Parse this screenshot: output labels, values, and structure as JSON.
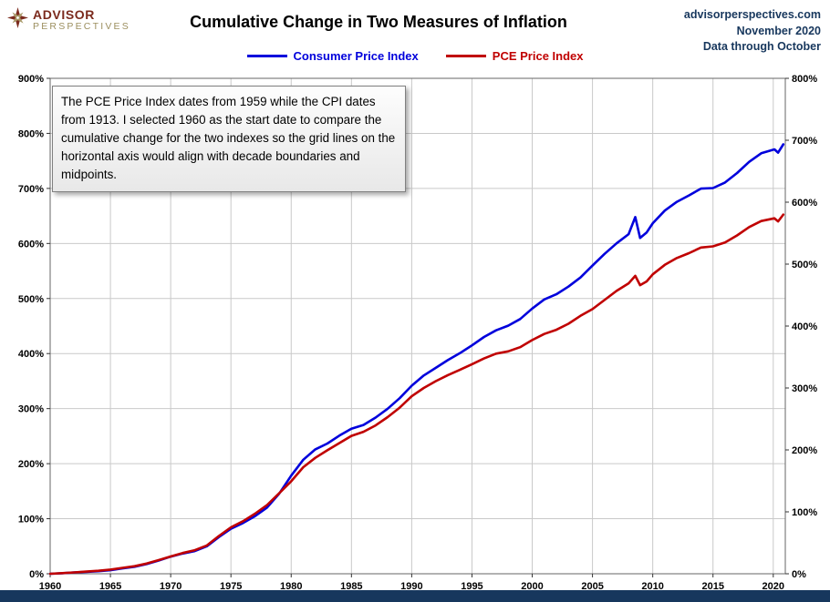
{
  "header": {
    "logo": {
      "line1": "ADVISOR",
      "line2": "PERSPECTIVES"
    },
    "title": "Cumulative Change in Two Measures of Inflation",
    "meta": [
      "advisorperspectives.com",
      "November 2020",
      "Data through October"
    ]
  },
  "legend": [
    {
      "label": "Consumer Price Index",
      "color": "#0000DC"
    },
    {
      "label": "PCE Price Index",
      "color": "#C00000"
    }
  ],
  "annotation": {
    "text": "The PCE Price Index dates from 1959 while the CPI dates from 1913. I selected 1960 as the start date to compare the cumulative change for the two indexes so the grid lines on the horizontal axis would align with decade boundaries and midpoints."
  },
  "colors": {
    "cpi_line": "#0000DC",
    "pce_line": "#C00000",
    "grid": "#C9C9C9",
    "plot_border": "#666666",
    "axis_text": "#000000",
    "navy_accent": "#17375D",
    "footer": "#17375D"
  },
  "chart_data": {
    "type": "line",
    "title": "Cumulative Change in Two Measures of Inflation",
    "xlabel": "",
    "ylabel": "",
    "grid": true,
    "legend_position": "top",
    "x_range": [
      1960,
      2021
    ],
    "x_ticks": [
      1960,
      1965,
      1970,
      1975,
      1980,
      1985,
      1990,
      1995,
      2000,
      2005,
      2010,
      2015,
      2020
    ],
    "x_tick_labels": [
      "1960",
      "1965",
      "1970",
      "1975",
      "1980",
      "1985",
      "1990",
      "1995",
      "2000",
      "2005",
      "2010",
      "2015",
      "2020"
    ],
    "left_axis": {
      "range": [
        0,
        900
      ],
      "ticks": [
        0,
        100,
        200,
        300,
        400,
        500,
        600,
        700,
        800,
        900
      ],
      "tick_labels": [
        "0%",
        "100%",
        "200%",
        "300%",
        "400%",
        "500%",
        "600%",
        "700%",
        "800%",
        "900%"
      ]
    },
    "right_axis": {
      "range": [
        0,
        800
      ],
      "ticks": [
        0,
        100,
        200,
        300,
        400,
        500,
        600,
        700,
        800
      ],
      "tick_labels": [
        "0%",
        "100%",
        "200%",
        "300%",
        "400%",
        "500%",
        "600%",
        "700%",
        "800%"
      ]
    },
    "series": [
      {
        "name": "Consumer Price Index",
        "color": "#0000DC",
        "axis": "left",
        "points": [
          [
            1960,
            0
          ],
          [
            1961,
            1
          ],
          [
            1962,
            2.4
          ],
          [
            1963,
            3.4
          ],
          [
            1964,
            4.7
          ],
          [
            1965,
            6.4
          ],
          [
            1966,
            9.8
          ],
          [
            1967,
            12.8
          ],
          [
            1968,
            17.6
          ],
          [
            1969,
            24
          ],
          [
            1970,
            31.1
          ],
          [
            1971,
            36.8
          ],
          [
            1972,
            41.2
          ],
          [
            1973,
            50
          ],
          [
            1974,
            66.6
          ],
          [
            1975,
            81.8
          ],
          [
            1976,
            92.2
          ],
          [
            1977,
            104.7
          ],
          [
            1978,
            120.3
          ],
          [
            1979,
            145.3
          ],
          [
            1980,
            178.4
          ],
          [
            1981,
            207.1
          ],
          [
            1982,
            226
          ],
          [
            1983,
            236.5
          ],
          [
            1984,
            251
          ],
          [
            1985,
            263.5
          ],
          [
            1986,
            270.3
          ],
          [
            1987,
            283.8
          ],
          [
            1988,
            299.7
          ],
          [
            1989,
            318.9
          ],
          [
            1990,
            341.6
          ],
          [
            1991,
            360.1
          ],
          [
            1992,
            374
          ],
          [
            1993,
            388.2
          ],
          [
            1994,
            400.7
          ],
          [
            1995,
            414.9
          ],
          [
            1996,
            430.1
          ],
          [
            1997,
            442.2
          ],
          [
            1998,
            450.7
          ],
          [
            1999,
            462.8
          ],
          [
            2000,
            481.8
          ],
          [
            2001,
            498.3
          ],
          [
            2002,
            507.8
          ],
          [
            2003,
            521.6
          ],
          [
            2004,
            538.2
          ],
          [
            2005,
            559.8
          ],
          [
            2006,
            581.1
          ],
          [
            2007,
            600.3
          ],
          [
            2008,
            617
          ],
          [
            2008.55,
            648
          ],
          [
            2008.95,
            610
          ],
          [
            2009.5,
            620
          ],
          [
            2010,
            636.8
          ],
          [
            2011,
            659.8
          ],
          [
            2012,
            675.7
          ],
          [
            2013,
            687.2
          ],
          [
            2014,
            699.7
          ],
          [
            2015,
            700.7
          ],
          [
            2016,
            710.8
          ],
          [
            2017,
            728
          ],
          [
            2018,
            748.3
          ],
          [
            2019,
            763.9
          ],
          [
            2020.1,
            771
          ],
          [
            2020.4,
            765
          ],
          [
            2020.83,
            780
          ]
        ]
      },
      {
        "name": "PCE Price Index",
        "color": "#C00000",
        "axis": "right",
        "points": [
          [
            1960,
            0
          ],
          [
            1961,
            1
          ],
          [
            1962,
            2.2
          ],
          [
            1963,
            3.5
          ],
          [
            1964,
            4.9
          ],
          [
            1965,
            6.7
          ],
          [
            1966,
            9.5
          ],
          [
            1967,
            12.2
          ],
          [
            1968,
            16.5
          ],
          [
            1969,
            22
          ],
          [
            1970,
            28
          ],
          [
            1971,
            33.5
          ],
          [
            1972,
            38.1
          ],
          [
            1973,
            45.7
          ],
          [
            1974,
            61
          ],
          [
            1975,
            75
          ],
          [
            1976,
            84.8
          ],
          [
            1977,
            97
          ],
          [
            1978,
            111
          ],
          [
            1979,
            129.9
          ],
          [
            1980,
            149.4
          ],
          [
            1981,
            172
          ],
          [
            1982,
            187.2
          ],
          [
            1983,
            199.4
          ],
          [
            1984,
            211
          ],
          [
            1985,
            222.6
          ],
          [
            1986,
            229.3
          ],
          [
            1987,
            239.6
          ],
          [
            1988,
            253
          ],
          [
            1989,
            268.3
          ],
          [
            1990,
            286.6
          ],
          [
            1991,
            300
          ],
          [
            1992,
            311
          ],
          [
            1993,
            320.7
          ],
          [
            1994,
            329.3
          ],
          [
            1995,
            338.4
          ],
          [
            1996,
            347.6
          ],
          [
            1997,
            355.5
          ],
          [
            1998,
            359.1
          ],
          [
            1999,
            365.9
          ],
          [
            2000,
            377.4
          ],
          [
            2001,
            387.2
          ],
          [
            2002,
            393.9
          ],
          [
            2003,
            403.7
          ],
          [
            2004,
            416.5
          ],
          [
            2005,
            427.4
          ],
          [
            2006,
            442.1
          ],
          [
            2007,
            456.7
          ],
          [
            2008,
            469
          ],
          [
            2008.55,
            481
          ],
          [
            2008.95,
            466
          ],
          [
            2009.5,
            472
          ],
          [
            2010,
            483.5
          ],
          [
            2011,
            498.8
          ],
          [
            2012,
            509.8
          ],
          [
            2013,
            517.7
          ],
          [
            2014,
            526.8
          ],
          [
            2015,
            528.7
          ],
          [
            2016,
            534.8
          ],
          [
            2017,
            546.3
          ],
          [
            2018,
            559.8
          ],
          [
            2019,
            569.5
          ],
          [
            2020.1,
            574
          ],
          [
            2020.4,
            569
          ],
          [
            2020.83,
            580
          ]
        ]
      }
    ]
  }
}
